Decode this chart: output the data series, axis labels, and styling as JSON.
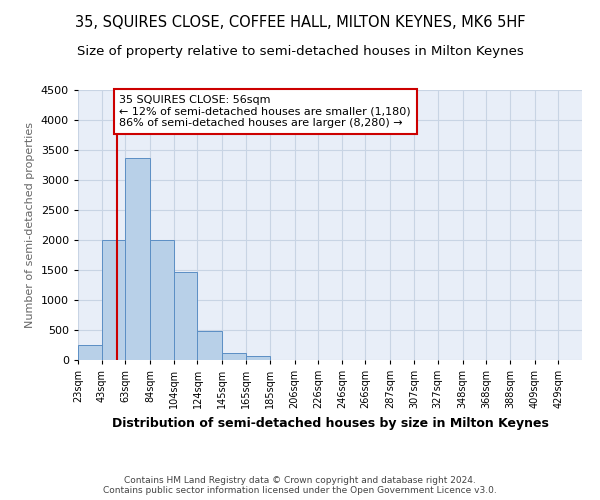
{
  "title": "35, SQUIRES CLOSE, COFFEE HALL, MILTON KEYNES, MK6 5HF",
  "subtitle": "Size of property relative to semi-detached houses in Milton Keynes",
  "xlabel": "Distribution of semi-detached houses by size in Milton Keynes",
  "ylabel": "Number of semi-detached properties",
  "bin_labels": [
    "23sqm",
    "43sqm",
    "63sqm",
    "84sqm",
    "104sqm",
    "124sqm",
    "145sqm",
    "165sqm",
    "185sqm",
    "206sqm",
    "226sqm",
    "246sqm",
    "266sqm",
    "287sqm",
    "307sqm",
    "327sqm",
    "348sqm",
    "368sqm",
    "388sqm",
    "409sqm",
    "429sqm"
  ],
  "bar_heights": [
    255,
    2000,
    3370,
    2000,
    1460,
    490,
    110,
    60,
    0,
    0,
    0,
    0,
    0,
    0,
    0,
    0,
    0,
    0,
    0,
    0,
    0
  ],
  "bin_edges": [
    23,
    43,
    63,
    84,
    104,
    124,
    145,
    165,
    185,
    206,
    226,
    246,
    266,
    287,
    307,
    327,
    348,
    368,
    388,
    409,
    429,
    449
  ],
  "bar_color": "#b8d0e8",
  "bar_edge_color": "#5b8ec4",
  "property_size": 56,
  "vline_color": "#cc0000",
  "annotation_line1": "35 SQUIRES CLOSE: 56sqm",
  "annotation_line2": "← 12% of semi-detached houses are smaller (1,180)",
  "annotation_line3": "86% of semi-detached houses are larger (8,280) →",
  "annotation_box_color": "#cc0000",
  "ylim": [
    0,
    4500
  ],
  "yticks": [
    0,
    500,
    1000,
    1500,
    2000,
    2500,
    3000,
    3500,
    4000,
    4500
  ],
  "grid_color": "#c8d4e4",
  "background_color": "#e8eef8",
  "footer_line1": "Contains HM Land Registry data © Crown copyright and database right 2024.",
  "footer_line2": "Contains public sector information licensed under the Open Government Licence v3.0.",
  "title_fontsize": 10.5,
  "subtitle_fontsize": 9.5,
  "xlabel_fontsize": 9,
  "ylabel_fontsize": 8
}
